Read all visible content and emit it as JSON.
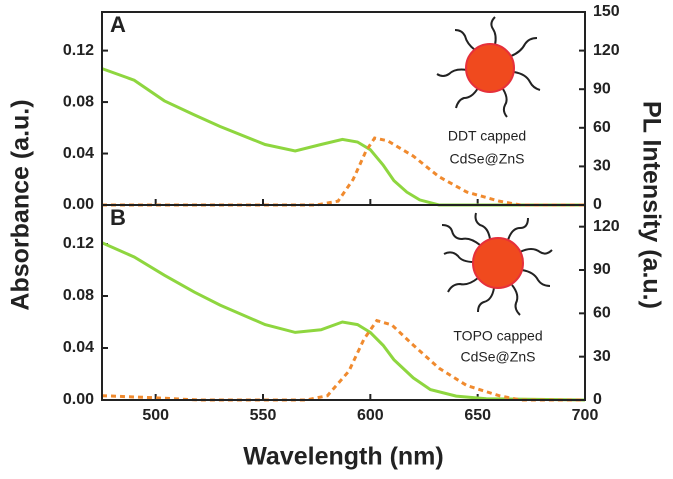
{
  "chart_data": [
    {
      "type": "line",
      "panel": "A",
      "annotation": [
        "DDT capped",
        "CdSe@ZnS"
      ],
      "ylabel": "Absorbance (a.u.)",
      "y2label": "PL Intensity (a.u.)",
      "xlim": [
        475,
        700
      ],
      "ylim": [
        0,
        0.15
      ],
      "y2lim": [
        0,
        150
      ],
      "yticks": [
        {
          "value": 0,
          "label": "0.00"
        },
        0.04,
        0.08,
        0.12
      ],
      "y2ticks": [
        0,
        30,
        60,
        90,
        120,
        150
      ],
      "series": [
        {
          "color": "#8ed63f",
          "linestyle": "solid",
          "x": [
            475,
            490,
            504,
            518,
            530,
            551,
            565,
            577,
            587,
            594,
            600,
            606,
            611,
            617,
            623,
            632,
            700
          ],
          "values": [
            0.106,
            0.097,
            0.081,
            0.07,
            0.061,
            0.047,
            0.042,
            0.047,
            0.051,
            0.049,
            0.043,
            0.031,
            0.019,
            0.01,
            0.004,
            0,
            0
          ]
        },
        {
          "color": "#f08a2e",
          "linestyle": "dashed",
          "axis": "y2",
          "x": [
            475,
            575,
            585,
            592,
            598,
            602,
            608,
            620,
            632,
            645,
            660,
            670,
            700
          ],
          "values": [
            0,
            0,
            3,
            20,
            42,
            52,
            50,
            38,
            22,
            10,
            3,
            0,
            0
          ]
        }
      ]
    },
    {
      "type": "line",
      "panel": "B",
      "annotation": [
        "TOPO capped",
        "CdSe@ZnS"
      ],
      "xlabel": "Wavelength (nm)",
      "xlim": [
        475,
        700
      ],
      "xticks": [
        500,
        550,
        600,
        650,
        700
      ],
      "ylim": [
        0,
        0.15
      ],
      "y2lim": [
        0,
        135
      ],
      "yticks": [
        {
          "value": 0,
          "label": "0.00"
        },
        0.04,
        0.08,
        0.12
      ],
      "y2ticks": [
        0,
        30,
        60,
        90,
        120
      ],
      "series": [
        {
          "color": "#8ed63f",
          "linestyle": "solid",
          "x": [
            475,
            490,
            504,
            518,
            530,
            551,
            565,
            577,
            587,
            594,
            600,
            606,
            611,
            620,
            628,
            640,
            654,
            700
          ],
          "values": [
            0.121,
            0.11,
            0.096,
            0.083,
            0.073,
            0.058,
            0.052,
            0.054,
            0.06,
            0.058,
            0.052,
            0.042,
            0.031,
            0.017,
            0.008,
            0.003,
            0.001,
            0
          ]
        },
        {
          "color": "#f08a2e",
          "linestyle": "dashed",
          "axis": "y2",
          "x": [
            475,
            500,
            520,
            570,
            580,
            590,
            597,
            603,
            610,
            620,
            632,
            645,
            660,
            670,
            700
          ],
          "values": [
            3,
            1.5,
            0,
            0,
            3,
            20,
            42,
            55,
            52,
            38,
            22,
            10,
            3,
            0,
            0
          ]
        }
      ]
    }
  ]
}
